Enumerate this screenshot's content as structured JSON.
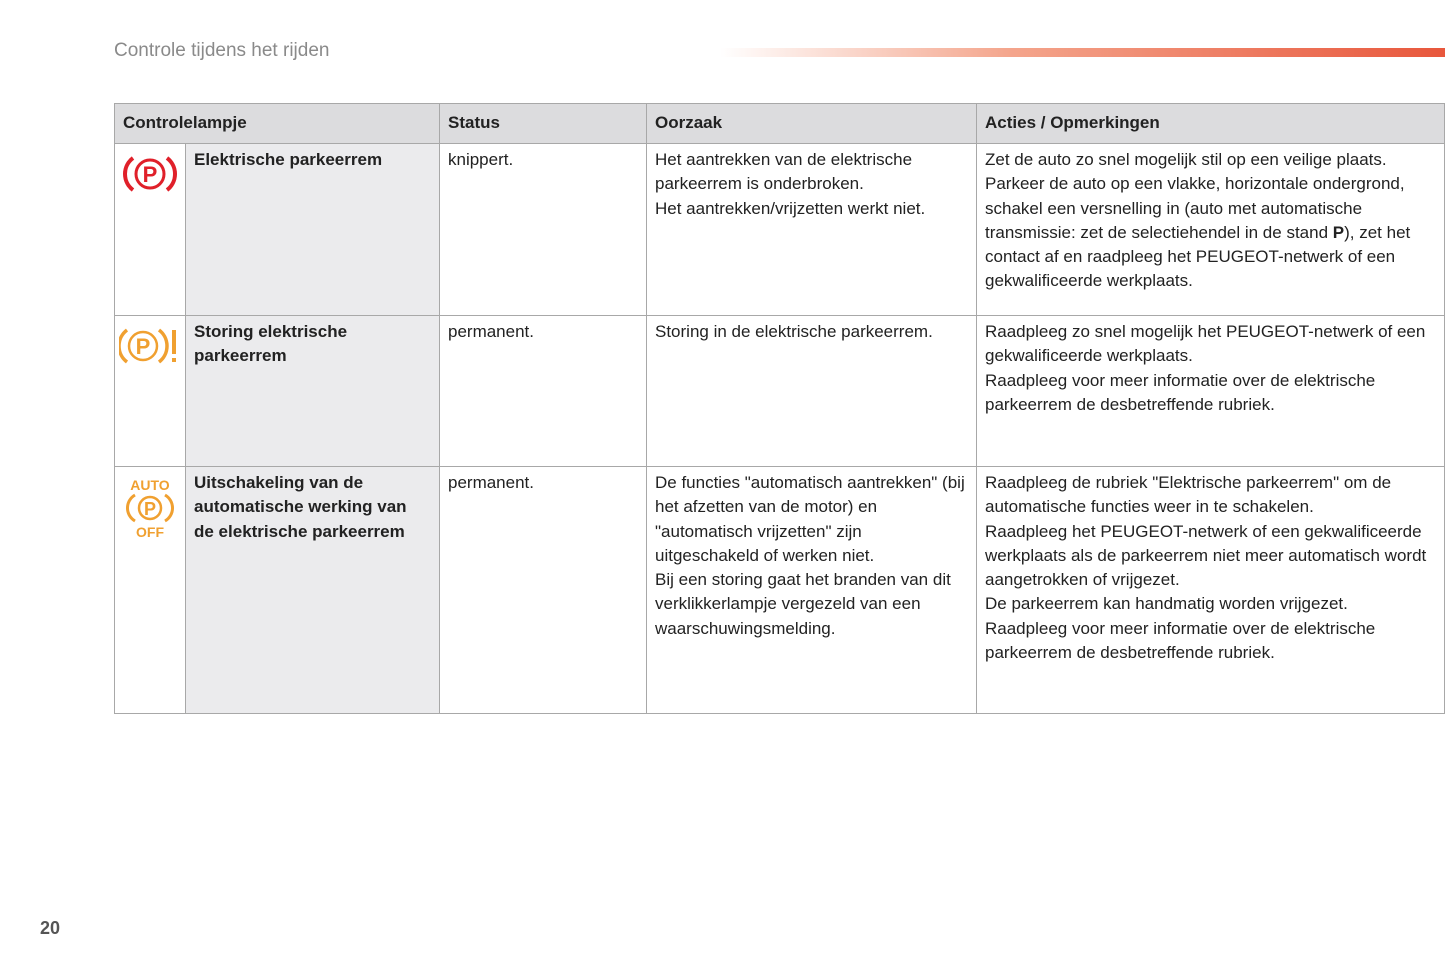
{
  "header": {
    "title": "Controle tijdens het rijden",
    "page_number": "20"
  },
  "colors": {
    "red": "#e0202a",
    "orange": "#f0a030",
    "accent": "#e8573c"
  },
  "table": {
    "headers": [
      "Controlelampje",
      "Status",
      "Oorzaak",
      "Acties / Opmerkingen"
    ],
    "rows": [
      {
        "icon": "parking-brake-red-icon",
        "name": "Elektrische parkeerrem",
        "status": "knippert.",
        "cause": [
          "Het aantrekken van de elektrische parkeerrem is onderbroken.",
          "Het aantrekken/vrijzetten werkt niet."
        ],
        "actions_pre": "Zet de auto zo snel mogelijk stil op een veilige plaats. Parkeer de auto op een vlakke, horizontale ondergrond, schakel een versnelling in (auto met automatische transmissie: zet de selectiehendel in de stand ",
        "actions_bold": "P",
        "actions_post": "), zet het contact af en raadpleeg het PEUGEOT-netwerk of een gekwalificeerde werkplaats."
      },
      {
        "icon": "parking-brake-fault-orange-icon",
        "name": "Storing elektrische parkeerrem",
        "status": "permanent.",
        "cause": [
          "Storing in de elektrische parkeerrem."
        ],
        "actions": [
          "Raadpleeg zo snel mogelijk het PEUGEOT-netwerk of een gekwalificeerde werkplaats.",
          "Raadpleeg voor meer informatie over de elektrische parkeerrem de desbetreffende rubriek."
        ]
      },
      {
        "icon": "parking-brake-auto-off-icon",
        "icon_text_top": "AUTO",
        "icon_text_bottom": "OFF",
        "name": "Uitschakeling van de automatische werking van de elektrische parkeerrem",
        "status": "permanent.",
        "cause": [
          "De functies \"automatisch aantrekken\" (bij het afzetten van de motor) en \"automatisch vrijzetten\" zijn uitgeschakeld of werken niet.",
          "Bij een storing gaat het branden van dit verklikkerlampje vergezeld van een waarschuwingsmelding."
        ],
        "actions": [
          "Raadpleeg de rubriek \"Elektrische parkeerrem\" om de automatische functies weer in te schakelen.",
          "Raadpleeg het PEUGEOT-netwerk of een gekwalificeerde werkplaats als de parkeerrem niet meer automatisch wordt aangetrokken of vrijgezet.",
          "De parkeerrem kan handmatig worden vrijgezet.",
          "Raadpleeg voor meer informatie over de elektrische parkeerrem de desbetreffende rubriek."
        ]
      }
    ]
  }
}
